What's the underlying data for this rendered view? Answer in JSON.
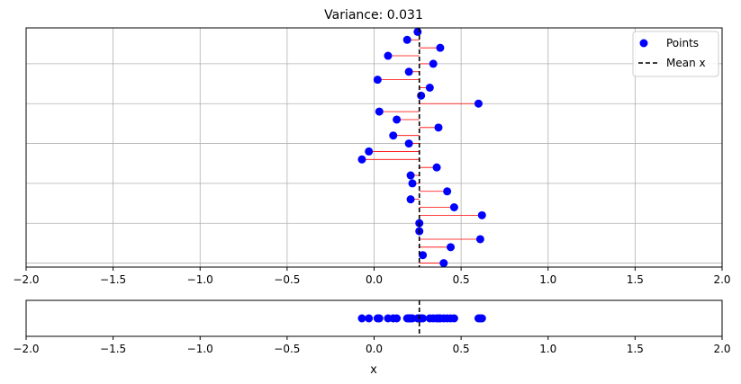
{
  "chart_data": [
    {
      "type": "scatter",
      "title": "Variance: 0.031",
      "xlabel": "",
      "ylabel": "",
      "xlim": [
        -2.0,
        2.0
      ],
      "xticks": [
        "−2.0",
        "−1.5",
        "−1.0",
        "−0.5",
        "0.0",
        "0.5",
        "1.0",
        "1.5",
        "2.0"
      ],
      "xtick_values": [
        -2.0,
        -1.5,
        -1.0,
        -0.5,
        0.0,
        0.5,
        1.0,
        1.5,
        2.0
      ],
      "ylim": [
        -0.5,
        29.5
      ],
      "grid": true,
      "legend": {
        "position": "top-right",
        "entries": [
          {
            "label": "Points",
            "kind": "marker",
            "color": "#0000ff"
          },
          {
            "label": "Mean x",
            "kind": "dashed-line",
            "color": "#000000"
          }
        ]
      },
      "mean_x": 0.26,
      "series": [
        {
          "name": "Points",
          "color": "#0000ff",
          "points": [
            {
              "x": 0.4,
              "y": 0
            },
            {
              "x": 0.28,
              "y": 1
            },
            {
              "x": 0.44,
              "y": 2
            },
            {
              "x": 0.61,
              "y": 3
            },
            {
              "x": 0.26,
              "y": 4
            },
            {
              "x": 0.26,
              "y": 5
            },
            {
              "x": 0.62,
              "y": 6
            },
            {
              "x": 0.46,
              "y": 7
            },
            {
              "x": 0.21,
              "y": 8
            },
            {
              "x": 0.42,
              "y": 9
            },
            {
              "x": 0.22,
              "y": 10
            },
            {
              "x": 0.21,
              "y": 11
            },
            {
              "x": 0.36,
              "y": 12
            },
            {
              "x": -0.07,
              "y": 13
            },
            {
              "x": -0.03,
              "y": 14
            },
            {
              "x": 0.2,
              "y": 15
            },
            {
              "x": 0.11,
              "y": 16
            },
            {
              "x": 0.37,
              "y": 17
            },
            {
              "x": 0.13,
              "y": 18
            },
            {
              "x": 0.03,
              "y": 19
            },
            {
              "x": 0.6,
              "y": 20
            },
            {
              "x": 0.27,
              "y": 21
            },
            {
              "x": 0.32,
              "y": 22
            },
            {
              "x": 0.02,
              "y": 23
            },
            {
              "x": 0.2,
              "y": 24
            },
            {
              "x": 0.34,
              "y": 25
            },
            {
              "x": 0.08,
              "y": 26
            },
            {
              "x": 0.38,
              "y": 27
            },
            {
              "x": 0.19,
              "y": 28
            },
            {
              "x": 0.25,
              "y": 29
            }
          ]
        }
      ],
      "deviation_line_color": "#ff0000",
      "grid_color": "#b0b0b0"
    },
    {
      "type": "scatter",
      "title": "",
      "xlabel": "x",
      "xlim": [
        -2.0,
        2.0
      ],
      "xticks": [
        "−2.0",
        "−1.5",
        "−1.0",
        "−0.5",
        "0.0",
        "0.5",
        "1.0",
        "1.5",
        "2.0"
      ],
      "xtick_values": [
        -2.0,
        -1.5,
        -1.0,
        -0.5,
        0.0,
        0.5,
        1.0,
        1.5,
        2.0
      ],
      "grid": false,
      "mean_x": 0.26,
      "note_values_same_as_top": true
    }
  ]
}
